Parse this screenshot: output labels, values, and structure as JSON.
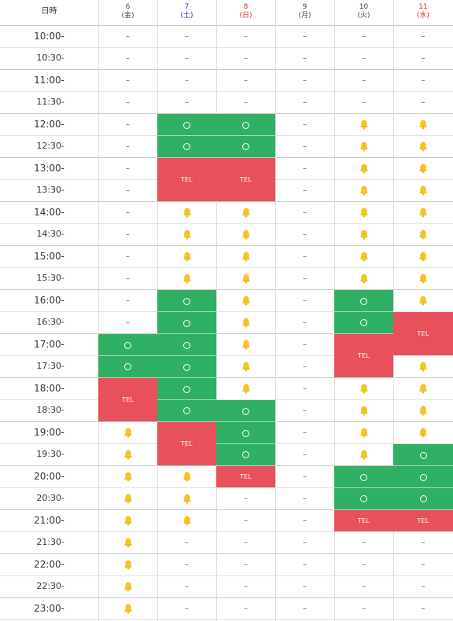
{
  "header": {
    "time_label": "日時",
    "days": [
      {
        "date": "6",
        "weekday": "(金)",
        "color": "#444444"
      },
      {
        "date": "7",
        "weekday": "(土)",
        "color": "#2a2acc"
      },
      {
        "date": "8",
        "weekday": "(日)",
        "color": "#dd2222"
      },
      {
        "date": "9",
        "weekday": "(月)",
        "color": "#444444"
      },
      {
        "date": "10",
        "weekday": "(火)",
        "color": "#444444"
      },
      {
        "date": "11",
        "weekday": "(水)",
        "color": "#dd2222"
      }
    ]
  },
  "symbols": {
    "unavailable": "–",
    "tel": "TEL",
    "available": "circle-icon",
    "few_left": "bell-icon"
  },
  "colors": {
    "available_bg": "#2fb064",
    "tel_bg": "#e8505b",
    "bell": "#f5c518"
  },
  "times": [
    "10:00-",
    "10:30-",
    "11:00-",
    "11:30-",
    "12:00-",
    "12:30-",
    "13:00-",
    "13:30-",
    "14:00-",
    "14:30-",
    "15:00-",
    "15:30-",
    "16:00-",
    "16:30-",
    "17:00-",
    "17:30-",
    "18:00-",
    "18:30-",
    "19:00-",
    "19:30-",
    "20:00-",
    "20:30-",
    "21:00-",
    "21:30-",
    "22:00-",
    "22:30-",
    "23:00-"
  ],
  "grid": [
    [
      "-",
      "-",
      "-",
      "-",
      "-",
      "-"
    ],
    [
      "-",
      "-",
      "-",
      "-",
      "-",
      "-"
    ],
    [
      "-",
      "-",
      "-",
      "-",
      "-",
      "-"
    ],
    [
      "-",
      "-",
      "-",
      "-",
      "-",
      "-"
    ],
    [
      "-",
      "o",
      "o",
      "-",
      "b",
      "b"
    ],
    [
      "-",
      "o",
      "o",
      "-",
      "b",
      "b"
    ],
    [
      "-",
      "T",
      "T",
      "-",
      "b",
      "b"
    ],
    [
      "-",
      "t",
      "t",
      "-",
      "b",
      "b"
    ],
    [
      "-",
      "b",
      "b",
      "-",
      "b",
      "b"
    ],
    [
      "-",
      "b",
      "b",
      "-",
      "b",
      "b"
    ],
    [
      "-",
      "b",
      "b",
      "-",
      "b",
      "b"
    ],
    [
      "-",
      "b",
      "b",
      "-",
      "b",
      "b"
    ],
    [
      "-",
      "o",
      "b",
      "-",
      "o",
      "b"
    ],
    [
      "-",
      "o",
      "b",
      "-",
      "o",
      "T"
    ],
    [
      "o",
      "o",
      "b",
      "-",
      "T",
      "t"
    ],
    [
      "o",
      "o",
      "b",
      "-",
      "t",
      "b"
    ],
    [
      "T",
      "o",
      "b",
      "-",
      "b",
      "b"
    ],
    [
      "t",
      "o",
      "o",
      "-",
      "b",
      "b"
    ],
    [
      "b",
      "T",
      "o",
      "-",
      "b",
      "b"
    ],
    [
      "b",
      "t",
      "o",
      "-",
      "b",
      "o"
    ],
    [
      "b",
      "b",
      "T",
      "-",
      "o",
      "o"
    ],
    [
      "b",
      "b",
      "-",
      "-",
      "o",
      "o"
    ],
    [
      "b",
      "b",
      "-",
      "-",
      "T",
      "T"
    ],
    [
      "b",
      "-",
      "-",
      "-",
      "-",
      "-"
    ],
    [
      "b",
      "-",
      "-",
      "-",
      "-",
      "-"
    ],
    [
      "b",
      "-",
      "-",
      "-",
      "-",
      "-"
    ],
    [
      "b",
      "-",
      "-",
      "-",
      "-",
      "-"
    ]
  ]
}
